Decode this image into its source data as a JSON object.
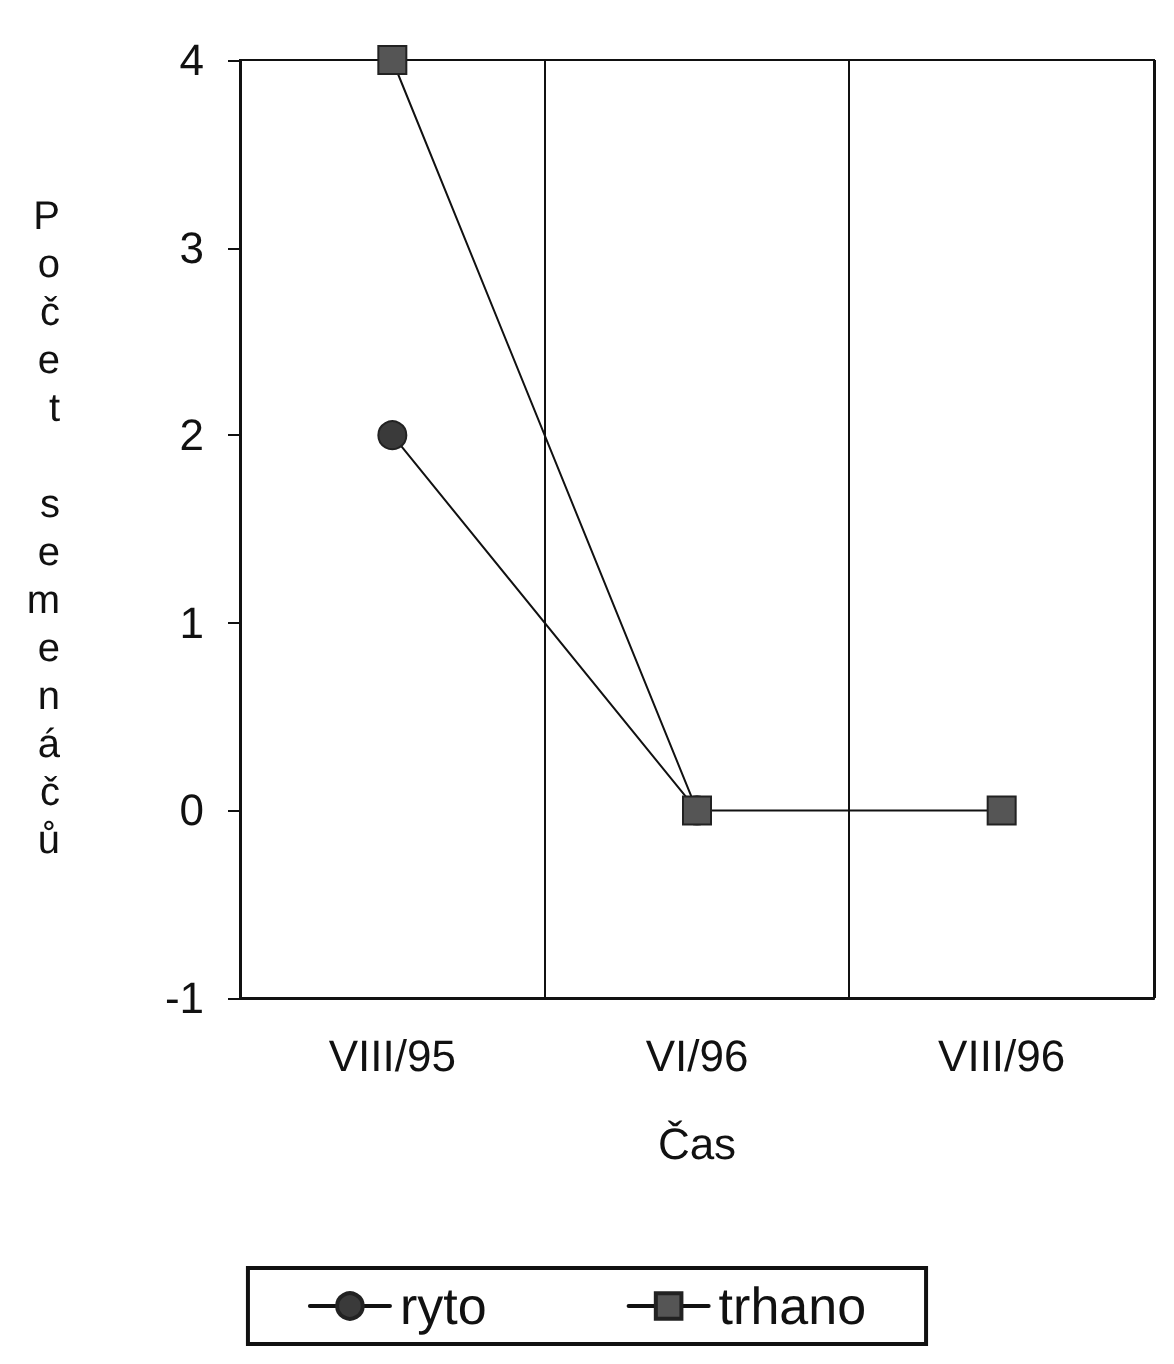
{
  "chart_data": {
    "type": "line",
    "xlabel": "Čas",
    "ylabel": "Počet semenáčů",
    "categories": [
      "VIII/95",
      "VI/96",
      "VIII/96"
    ],
    "series": [
      {
        "name": "ryto",
        "color": "#3a3a3a",
        "marker": "circle",
        "values": [
          2,
          0,
          null
        ]
      },
      {
        "name": "trhano",
        "color": "#555555",
        "marker": "square",
        "values": [
          4,
          0,
          0
        ]
      }
    ],
    "ylim": [
      -1,
      4
    ],
    "yticks": [
      -1,
      0,
      1,
      2,
      3,
      4
    ],
    "grid": "x",
    "legend": "bottom",
    "line_style": "solid"
  }
}
